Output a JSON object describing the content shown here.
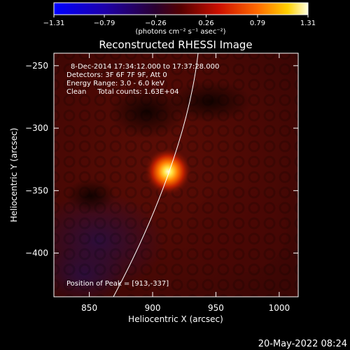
{
  "chart_data": {
    "type": "heatmap",
    "title": "Reconstructed RHESSI Image",
    "xlabel": "Heliocentric X (arcsec)",
    "ylabel": "Heliocentric Y (arcsec)",
    "xlim": [
      822,
      1015
    ],
    "ylim": [
      -435,
      -240
    ],
    "x_ticks": [
      850,
      900,
      950,
      1000
    ],
    "y_ticks": [
      -250,
      -300,
      -350,
      -400
    ],
    "x_tick_labels": [
      "850",
      "900",
      "950",
      "1000"
    ],
    "y_tick_labels": [
      "−250",
      "−300",
      "−350",
      "−400"
    ],
    "colorbar": {
      "range": [
        -1.31,
        1.31
      ],
      "ticks": [
        -1.31,
        -0.79,
        -0.26,
        0.26,
        0.79,
        1.31
      ],
      "tick_labels": [
        "−1.31",
        "−0.79",
        "−0.26",
        "0.26",
        "0.79",
        "1.31"
      ],
      "units_label": "(photons cm⁻² s⁻¹ asec⁻²)"
    },
    "annotations": [
      "8-Dec-2014 17:34:12.000 to 17:37:28.000",
      "Detectors: 3F 6F 7F 9F, Att 0",
      "Energy Range: 3.0 - 6.0 keV",
      "Clean     Total counts: 1.63E+04"
    ],
    "peak": {
      "x": 913,
      "y": -337,
      "label": "Position of Peak = [913,-337]"
    },
    "grid": false
  },
  "footer": {
    "timestamp": "20-May-2022 08:24"
  }
}
